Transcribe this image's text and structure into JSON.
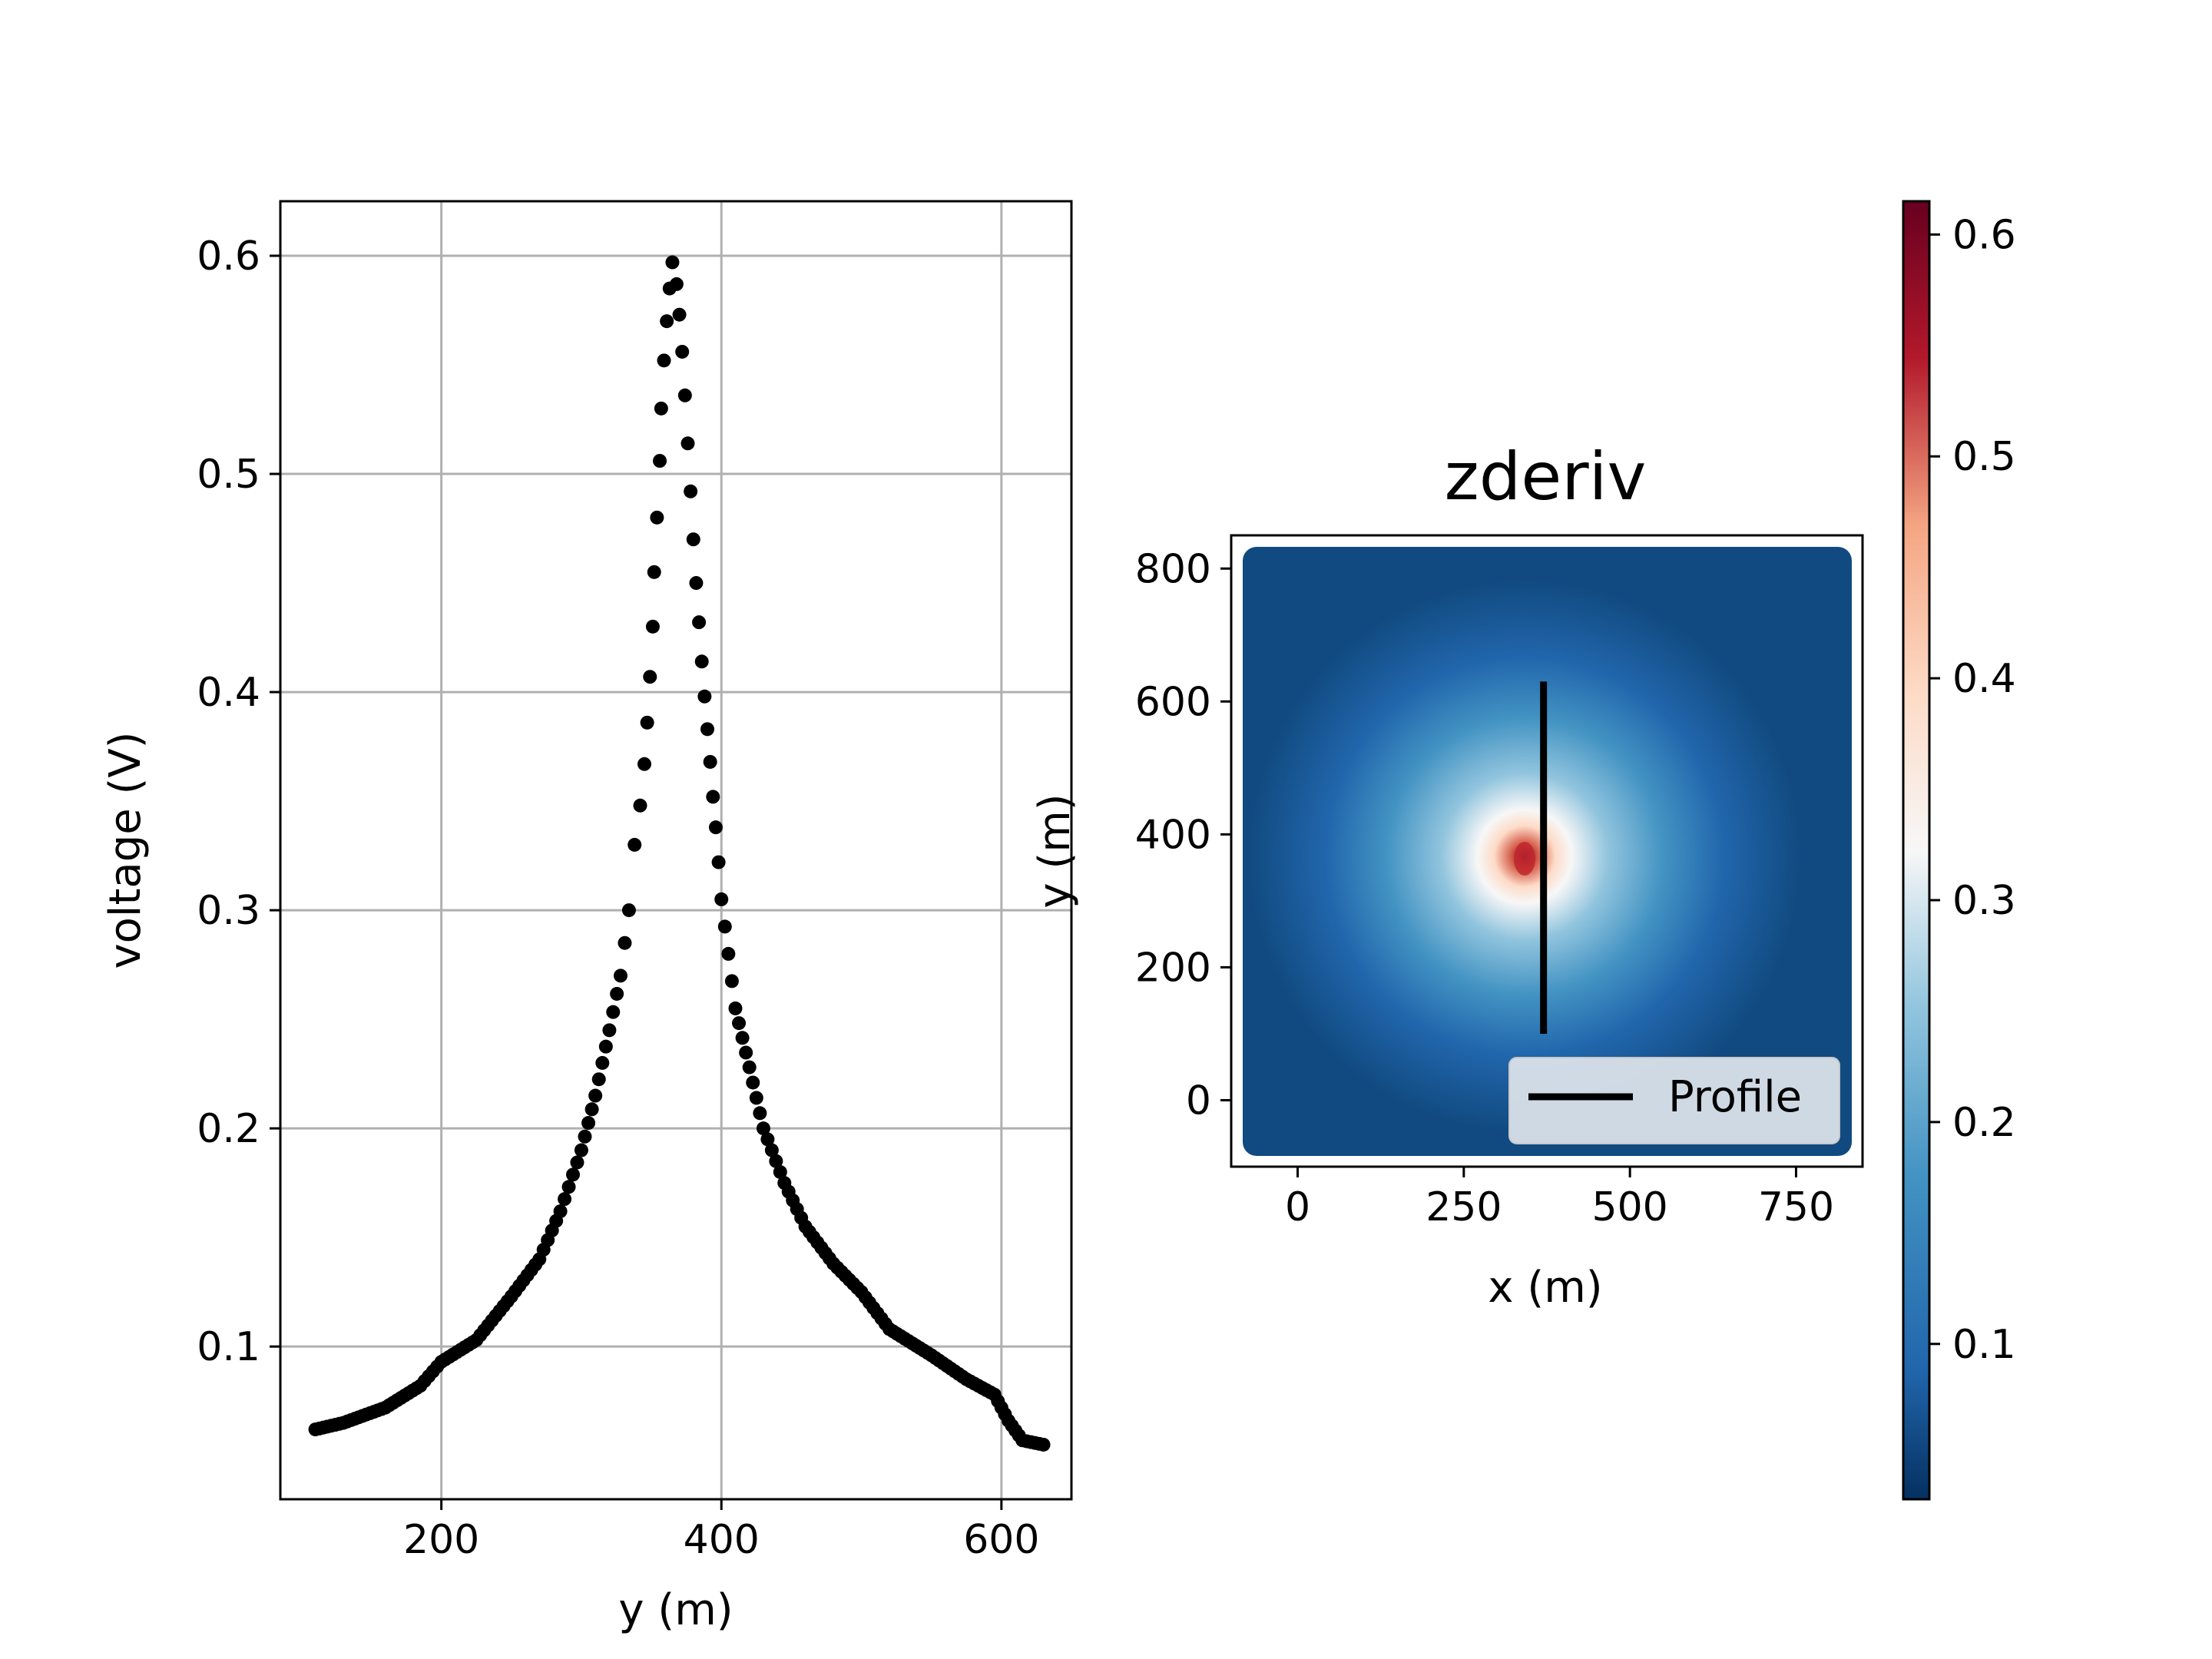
{
  "chart_data": [
    {
      "type": "scatter",
      "title": "",
      "xlabel": "y (m)",
      "ylabel": "voltage (V)",
      "xlim": [
        85,
        650
      ],
      "ylim": [
        0.03,
        0.625
      ],
      "xticks": [
        200,
        400,
        600
      ],
      "yticks": [
        0.1,
        0.2,
        0.3,
        0.4,
        0.5,
        0.6
      ],
      "grid": true,
      "series": [
        {
          "color": "#000000",
          "points": [
            [
              110,
              0.062
            ],
            [
              130,
              0.065
            ],
            [
              160,
              0.072
            ],
            [
              185,
              0.082
            ],
            [
              200,
              0.093
            ],
            [
              225,
              0.103
            ],
            [
              250,
              0.123
            ],
            [
              270,
              0.14
            ],
            [
              285,
              0.162
            ],
            [
              300,
              0.19
            ],
            [
              310,
              0.215
            ],
            [
              320,
              0.245
            ],
            [
              328,
              0.27
            ],
            [
              334,
              0.3
            ],
            [
              338,
              0.33
            ],
            [
              342,
              0.348
            ],
            [
              345,
              0.367
            ],
            [
              347,
              0.386
            ],
            [
              349,
              0.407
            ],
            [
              351,
              0.43
            ],
            [
              352,
              0.455
            ],
            [
              354,
              0.48
            ],
            [
              356,
              0.506
            ],
            [
              357,
              0.53
            ],
            [
              359,
              0.552
            ],
            [
              361,
              0.57
            ],
            [
              363,
              0.585
            ],
            [
              365,
              0.597
            ],
            [
              368,
              0.587
            ],
            [
              370,
              0.573
            ],
            [
              372,
              0.556
            ],
            [
              374,
              0.536
            ],
            [
              376,
              0.514
            ],
            [
              378,
              0.492
            ],
            [
              380,
              0.47
            ],
            [
              382,
              0.45
            ],
            [
              384,
              0.432
            ],
            [
              386,
              0.414
            ],
            [
              388,
              0.398
            ],
            [
              390,
              0.383
            ],
            [
              392,
              0.368
            ],
            [
              394,
              0.352
            ],
            [
              396,
              0.338
            ],
            [
              398,
              0.322
            ],
            [
              400,
              0.305
            ],
            [
              405,
              0.28
            ],
            [
              410,
              0.255
            ],
            [
              420,
              0.228
            ],
            [
              430,
              0.2
            ],
            [
              445,
              0.175
            ],
            [
              460,
              0.155
            ],
            [
              480,
              0.138
            ],
            [
              500,
              0.125
            ],
            [
              520,
              0.108
            ],
            [
              550,
              0.096
            ],
            [
              575,
              0.085
            ],
            [
              595,
              0.078
            ],
            [
              605,
              0.066
            ],
            [
              615,
              0.057
            ],
            [
              630,
              0.055
            ]
          ]
        }
      ]
    },
    {
      "type": "heatmap",
      "title": "zderiv",
      "xlabel": "x (m)",
      "ylabel": "y (m)",
      "xlim": [
        -100,
        850
      ],
      "ylim": [
        -100,
        850
      ],
      "xticks": [
        0,
        250,
        500,
        750
      ],
      "yticks": [
        0,
        200,
        400,
        600,
        800
      ],
      "colormap": "RdBu_r",
      "colorbar": {
        "min": 0.03,
        "max": 0.615,
        "ticks": [
          0.1,
          0.2,
          0.3,
          0.4,
          0.5,
          0.6
        ]
      },
      "anomaly_center": [
        350,
        360
      ],
      "profile_line": {
        "x": 370,
        "y_start": 100,
        "y_end": 630,
        "color": "#000000"
      },
      "legend": {
        "position": "lower right",
        "entries": [
          "Profile"
        ]
      }
    }
  ]
}
